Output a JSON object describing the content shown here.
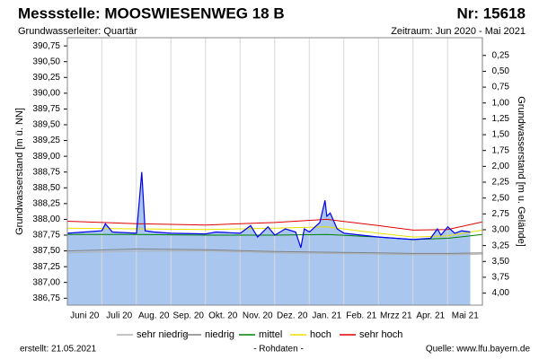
{
  "chart_data": {
    "type": "line",
    "title": "Messstelle: MOOSWIESENWEG 18 B",
    "number": "Nr: 15618",
    "subtitle": "Grundwasserleiter: Quartär",
    "period": "Zeitraum: Jun 2020 - Mai 2021",
    "y_label": "Grundwasserstand [m ü. NN]",
    "y2_label": "Grundwasserstand [m u. Gelände]",
    "created": "erstellt:  21.05.2021",
    "note": "- Rohdaten -",
    "source": "Quelle:  www.lfu.bayern.de",
    "xlim": [
      0,
      12
    ],
    "xticks": [
      {
        "value": 0.5,
        "label": "Juni 20"
      },
      {
        "value": 1.5,
        "label": "Juli 20"
      },
      {
        "value": 2.5,
        "label": "Aug. 20"
      },
      {
        "value": 3.5,
        "label": "Sep. 20"
      },
      {
        "value": 4.5,
        "label": "Okt. 20"
      },
      {
        "value": 5.5,
        "label": "Nov. 20"
      },
      {
        "value": 6.5,
        "label": "Dez. 20"
      },
      {
        "value": 7.5,
        "label": "Jan. 21"
      },
      {
        "value": 8.5,
        "label": "Feb. 21"
      },
      {
        "value": 9.5,
        "label": "Mrzz 21"
      },
      {
        "value": 10.5,
        "label": "Apr. 21"
      },
      {
        "value": 11.5,
        "label": "Mai 21"
      }
    ],
    "ylim": [
      386.64,
      390.88
    ],
    "yticks": [
      {
        "value": 386.75,
        "label": "386,75"
      },
      {
        "value": 387,
        "label": "387,00"
      },
      {
        "value": 387.25,
        "label": "387,25"
      },
      {
        "value": 387.5,
        "label": "387,50"
      },
      {
        "value": 387.75,
        "label": "387,75"
      },
      {
        "value": 388,
        "label": "388,00"
      },
      {
        "value": 388.25,
        "label": "388,25"
      },
      {
        "value": 388.5,
        "label": "388,50"
      },
      {
        "value": 388.75,
        "label": "388,75"
      },
      {
        "value": 389,
        "label": "389,00"
      },
      {
        "value": 389.25,
        "label": "389,25"
      },
      {
        "value": 389.5,
        "label": "389,50"
      },
      {
        "value": 389.75,
        "label": "389,75"
      },
      {
        "value": 390,
        "label": "390,00"
      },
      {
        "value": 390.25,
        "label": "390,25"
      },
      {
        "value": 390.5,
        "label": "390,50"
      },
      {
        "value": 390.75,
        "label": "390,75"
      }
    ],
    "y2lim": [
      4.19,
      -0.03
    ],
    "y2ticks": [
      {
        "value": 0.25,
        "label": "0,25"
      },
      {
        "value": 0.5,
        "label": "0,50"
      },
      {
        "value": 0.75,
        "label": "0,75"
      },
      {
        "value": 1,
        "label": "1,00"
      },
      {
        "value": 1.25,
        "label": "1,25"
      },
      {
        "value": 1.5,
        "label": "1,50"
      },
      {
        "value": 1.75,
        "label": "1,75"
      },
      {
        "value": 2,
        "label": "2,00"
      },
      {
        "value": 2.25,
        "label": "2,25"
      },
      {
        "value": 2.5,
        "label": "2,50"
      },
      {
        "value": 2.75,
        "label": "2,75"
      },
      {
        "value": 3,
        "label": "3,00"
      },
      {
        "value": 3.25,
        "label": "3,25"
      },
      {
        "value": 3.5,
        "label": "3,50"
      },
      {
        "value": 3.75,
        "label": "3,75"
      },
      {
        "value": 4,
        "label": "4,00"
      }
    ],
    "grid": true,
    "measured": {
      "color": "#0000ee",
      "fill": "#a8c6ee",
      "x": [
        0,
        0.5,
        1.0,
        1.1,
        1.3,
        2.0,
        2.15,
        2.25,
        2.5,
        3.0,
        4.0,
        4.3,
        5.0,
        5.3,
        5.5,
        5.8,
        6.0,
        6.3,
        6.6,
        6.75,
        6.85,
        7.0,
        7.3,
        7.45,
        7.5,
        7.6,
        7.8,
        8.0,
        8.5,
        9.0,
        9.5,
        10.0,
        10.5,
        10.7,
        10.8,
        11.0,
        11.2,
        11.4,
        11.65
      ],
      "values": [
        387.78,
        387.8,
        387.82,
        387.93,
        387.8,
        387.78,
        388.75,
        387.82,
        387.8,
        387.78,
        387.77,
        387.8,
        387.78,
        387.9,
        387.72,
        387.88,
        387.75,
        387.85,
        387.8,
        387.55,
        387.85,
        387.8,
        387.95,
        388.3,
        388.05,
        388.1,
        387.85,
        387.78,
        387.75,
        387.72,
        387.7,
        387.68,
        387.7,
        387.85,
        387.75,
        387.88,
        387.78,
        387.82,
        387.8
      ]
    },
    "series": [
      {
        "name": "sehr niedrig",
        "color": "#b0b0b0",
        "x": [
          0,
          2,
          4,
          6,
          7.5,
          9,
          10,
          11,
          12
        ],
        "values": [
          387.47,
          387.5,
          387.5,
          387.47,
          387.46,
          387.45,
          387.44,
          387.44,
          387.45
        ]
      },
      {
        "name": "niedrig",
        "color": "#808080",
        "x": [
          0,
          2,
          4,
          6,
          7.5,
          9,
          10,
          11,
          12
        ],
        "values": [
          387.5,
          387.53,
          387.52,
          387.49,
          387.48,
          387.47,
          387.46,
          387.46,
          387.47
        ]
      },
      {
        "name": "mittel",
        "color": "#008000",
        "x": [
          0,
          2,
          4,
          6,
          7.5,
          9,
          10,
          11,
          12
        ],
        "values": [
          387.76,
          387.76,
          387.75,
          387.75,
          387.76,
          387.72,
          387.68,
          387.7,
          387.76
        ]
      },
      {
        "name": "hoch",
        "color": "#e8e000",
        "x": [
          0,
          2,
          4,
          6,
          7.5,
          9,
          10,
          11,
          12
        ],
        "values": [
          387.86,
          387.85,
          387.84,
          387.86,
          387.88,
          387.78,
          387.72,
          387.74,
          387.83
        ]
      },
      {
        "name": "sehr hoch",
        "color": "#e00000",
        "x": [
          0,
          2,
          4,
          6,
          7.5,
          9,
          10,
          11,
          12
        ],
        "values": [
          387.97,
          387.93,
          387.91,
          387.95,
          388.0,
          387.9,
          387.83,
          387.84,
          387.96
        ]
      }
    ]
  }
}
